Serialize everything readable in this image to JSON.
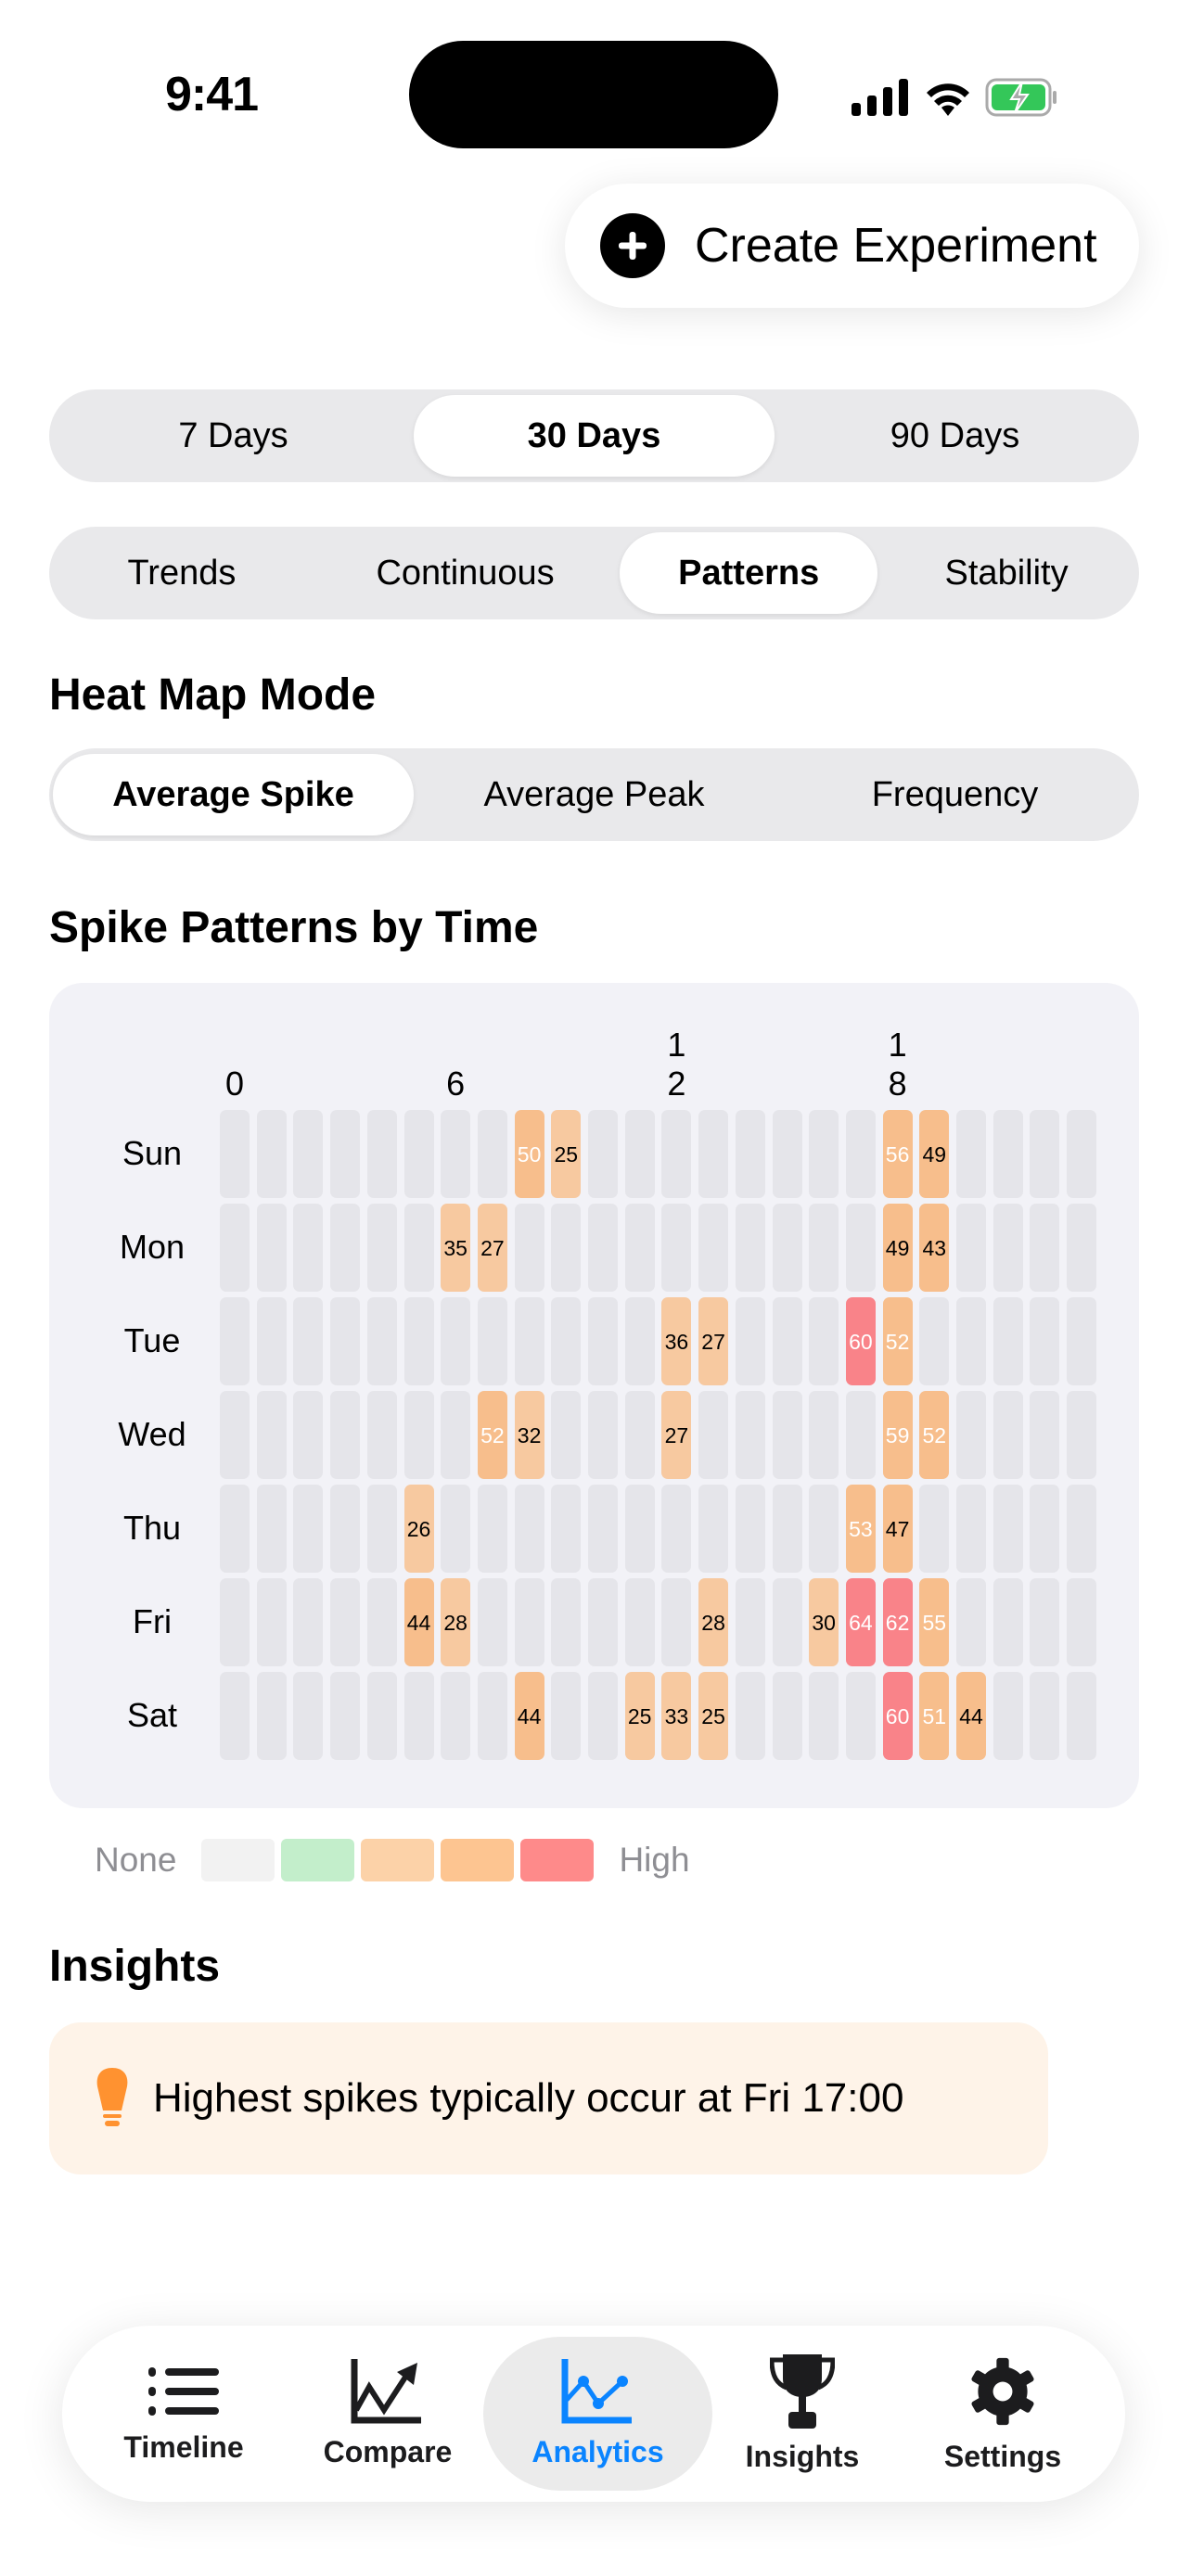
{
  "status_bar": {
    "time": "9:41"
  },
  "create_button": {
    "label": "Create Experiment",
    "icon": "plus-circle-icon"
  },
  "range_segment": {
    "options": [
      "7 Days",
      "30 Days",
      "90 Days"
    ],
    "selected": "30 Days"
  },
  "view_segment": {
    "options": [
      "Trends",
      "Continuous",
      "Patterns",
      "Stability"
    ],
    "selected": "Patterns"
  },
  "heat_map_mode": {
    "title": "Heat Map Mode",
    "options": [
      "Average Spike",
      "Average Peak",
      "Frequency"
    ],
    "selected": "Average Spike"
  },
  "heatmap_title": "Spike Patterns by Time",
  "chart_data": {
    "type": "heatmap",
    "rows": [
      "Sun",
      "Mon",
      "Tue",
      "Wed",
      "Thu",
      "Fri",
      "Sat"
    ],
    "columns": [
      0,
      1,
      2,
      3,
      4,
      5,
      6,
      7,
      8,
      9,
      10,
      11,
      12,
      13,
      14,
      15,
      16,
      17,
      18,
      19,
      20,
      21,
      22,
      23
    ],
    "column_tick_labels": [
      {
        "hour": 0,
        "label": "0"
      },
      {
        "hour": 6,
        "label": "6"
      },
      {
        "hour": 12,
        "label": "12"
      },
      {
        "hour": 18,
        "label": "18"
      }
    ],
    "cells": [
      {
        "day": "Sun",
        "hour": 8,
        "value": 50
      },
      {
        "day": "Sun",
        "hour": 9,
        "value": 25
      },
      {
        "day": "Sun",
        "hour": 18,
        "value": 56
      },
      {
        "day": "Sun",
        "hour": 19,
        "value": 49
      },
      {
        "day": "Mon",
        "hour": 6,
        "value": 35
      },
      {
        "day": "Mon",
        "hour": 7,
        "value": 27
      },
      {
        "day": "Mon",
        "hour": 18,
        "value": 49
      },
      {
        "day": "Mon",
        "hour": 19,
        "value": 43
      },
      {
        "day": "Tue",
        "hour": 12,
        "value": 36
      },
      {
        "day": "Tue",
        "hour": 13,
        "value": 27
      },
      {
        "day": "Tue",
        "hour": 17,
        "value": 60
      },
      {
        "day": "Tue",
        "hour": 18,
        "value": 52
      },
      {
        "day": "Wed",
        "hour": 7,
        "value": 52
      },
      {
        "day": "Wed",
        "hour": 8,
        "value": 32
      },
      {
        "day": "Wed",
        "hour": 12,
        "value": 27
      },
      {
        "day": "Wed",
        "hour": 18,
        "value": 59
      },
      {
        "day": "Wed",
        "hour": 19,
        "value": 52
      },
      {
        "day": "Thu",
        "hour": 5,
        "value": 26
      },
      {
        "day": "Thu",
        "hour": 17,
        "value": 53
      },
      {
        "day": "Thu",
        "hour": 18,
        "value": 47
      },
      {
        "day": "Fri",
        "hour": 5,
        "value": 44
      },
      {
        "day": "Fri",
        "hour": 6,
        "value": 28
      },
      {
        "day": "Fri",
        "hour": 13,
        "value": 28
      },
      {
        "day": "Fri",
        "hour": 16,
        "value": 30
      },
      {
        "day": "Fri",
        "hour": 17,
        "value": 64
      },
      {
        "day": "Fri",
        "hour": 18,
        "value": 62
      },
      {
        "day": "Fri",
        "hour": 19,
        "value": 55
      },
      {
        "day": "Sat",
        "hour": 8,
        "value": 44
      },
      {
        "day": "Sat",
        "hour": 11,
        "value": 25
      },
      {
        "day": "Sat",
        "hour": 12,
        "value": 33
      },
      {
        "day": "Sat",
        "hour": 13,
        "value": 25
      },
      {
        "day": "Sat",
        "hour": 18,
        "value": 60
      },
      {
        "day": "Sat",
        "hour": 19,
        "value": 51
      },
      {
        "day": "Sat",
        "hour": 20,
        "value": 44
      }
    ],
    "colors": {
      "empty": "#E5E5EA",
      "low": "#F7C9A0",
      "medium": "#F7BE8C",
      "high": "#F98389"
    },
    "legend": {
      "low_label": "None",
      "high_label": "High",
      "swatches": [
        "#F2F2F2",
        "#C3EECB",
        "#FCD2A8",
        "#FDC591",
        "#FE8A8A"
      ]
    }
  },
  "insights": {
    "title": "Insights",
    "items": [
      {
        "icon": "lightbulb-icon",
        "text": "Highest spikes typically occur at Fri 17:00",
        "color": "#FF9230"
      }
    ]
  },
  "tab_bar": {
    "items": [
      {
        "label": "Timeline",
        "icon": "list-icon"
      },
      {
        "label": "Compare",
        "icon": "chart-up-icon"
      },
      {
        "label": "Analytics",
        "icon": "line-chart-icon"
      },
      {
        "label": "Insights",
        "icon": "trophy-icon"
      },
      {
        "label": "Settings",
        "icon": "gear-icon"
      }
    ],
    "selected": "Analytics",
    "accent": "#0A84FF"
  }
}
